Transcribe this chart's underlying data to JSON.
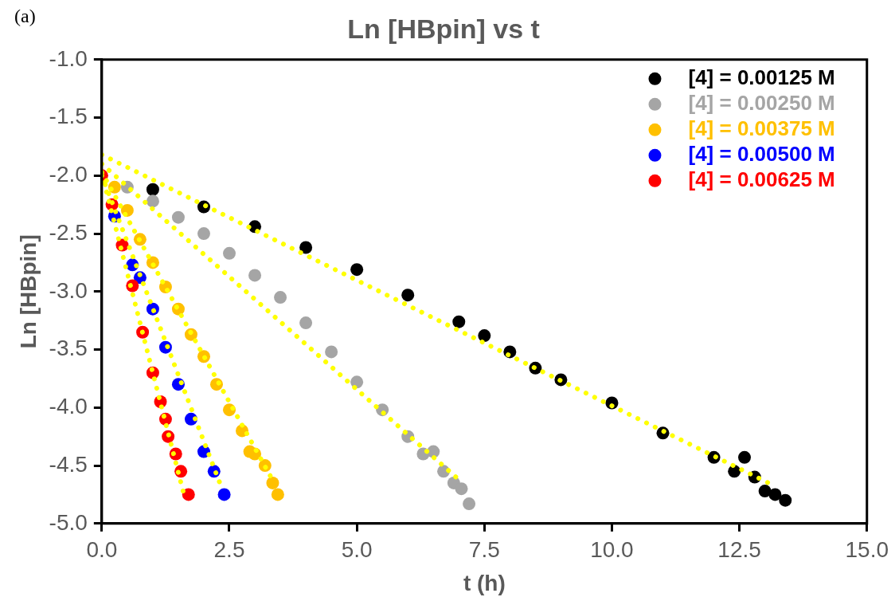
{
  "chart_data": {
    "type": "scatter",
    "title": "Ln [HBpin] vs t",
    "xlabel": "t (h)",
    "ylabel": "Ln [HBpin]",
    "annotations": [
      "(a)"
    ],
    "xlim": [
      0,
      15
    ],
    "xticks": [
      {
        "value": 0,
        "label": "0.0"
      },
      {
        "value": 2.5,
        "label": "2.5"
      },
      {
        "value": 5,
        "label": "5.0"
      },
      {
        "value": 7.5,
        "label": "7.5"
      },
      {
        "value": 10,
        "label": "10.0"
      },
      {
        "value": 12.5,
        "label": "12.5"
      },
      {
        "value": 15,
        "label": "15.0"
      }
    ],
    "ylim": [
      -5,
      -1
    ],
    "yticks": [
      {
        "value": -5,
        "label": "-5.0"
      },
      {
        "value": -4.5,
        "label": "-4.5"
      },
      {
        "value": -4,
        "label": "-4.0"
      },
      {
        "value": -3.5,
        "label": "-3.5"
      },
      {
        "value": -3,
        "label": "-3.0"
      },
      {
        "value": -2.5,
        "label": "-2.5"
      },
      {
        "value": -2,
        "label": "-2.0"
      },
      {
        "value": -1.5,
        "label": "-1.5"
      },
      {
        "value": -1,
        "label": "-1.0"
      }
    ],
    "grid": false,
    "legend": "top right",
    "marker": "circle",
    "series": [
      {
        "name": "[4] = 0.00125 M",
        "color": "#000000",
        "x": [
          1,
          2,
          3,
          4,
          5,
          6,
          7,
          7.5,
          8,
          8.5,
          9,
          10,
          11,
          12,
          12.4,
          12.6,
          12.8,
          13,
          13.2,
          13.4
        ],
        "values": [
          -2.12,
          -2.27,
          -2.44,
          -2.62,
          -2.81,
          -3.03,
          -3.26,
          -3.38,
          -3.52,
          -3.66,
          -3.76,
          -3.96,
          -4.22,
          -4.43,
          -4.55,
          -4.43,
          -4.6,
          -4.72,
          -4.75,
          -4.8
        ]
      },
      {
        "name": "[4] = 0.00250 M",
        "color": "#a5a5a5",
        "x": [
          0.5,
          1,
          1.5,
          2,
          2.5,
          3,
          3.5,
          4,
          4.5,
          5,
          5.5,
          6,
          6.3,
          6.5,
          6.7,
          6.9,
          7.05,
          7.2
        ],
        "values": [
          -2.1,
          -2.22,
          -2.36,
          -2.5,
          -2.67,
          -2.86,
          -3.05,
          -3.27,
          -3.52,
          -3.78,
          -4.02,
          -4.25,
          -4.4,
          -4.38,
          -4.55,
          -4.65,
          -4.7,
          -4.83
        ]
      },
      {
        "name": "[4] = 0.00375 M",
        "color": "#ffc000",
        "x": [
          0.25,
          0.5,
          0.75,
          1,
          1.25,
          1.5,
          1.75,
          2,
          2.25,
          2.5,
          2.75,
          2.9,
          3.0,
          3.2,
          3.35,
          3.45
        ],
        "values": [
          -2.1,
          -2.3,
          -2.55,
          -2.75,
          -2.96,
          -3.15,
          -3.37,
          -3.56,
          -3.8,
          -4.02,
          -4.2,
          -4.38,
          -4.4,
          -4.5,
          -4.65,
          -4.75
        ]
      },
      {
        "name": "[4] = 0.00500 M",
        "color": "#0000ff",
        "x": [
          0.25,
          0.6,
          0.75,
          1,
          1.25,
          1.5,
          1.75,
          2,
          2.2,
          2.4
        ],
        "values": [
          -2.35,
          -2.77,
          -2.88,
          -3.15,
          -3.48,
          -3.8,
          -4.1,
          -4.38,
          -4.55,
          -4.75
        ]
      },
      {
        "name": "[4] = 0.00625 M",
        "color": "#ff0000",
        "x": [
          0,
          0.2,
          0.4,
          0.6,
          0.8,
          1.0,
          1.15,
          1.25,
          1.3,
          1.45,
          1.55,
          1.7
        ],
        "values": [
          -2.0,
          -2.25,
          -2.6,
          -2.95,
          -3.35,
          -3.7,
          -3.95,
          -4.1,
          -4.25,
          -4.4,
          -4.55,
          -4.75
        ]
      },
      {
        "type": "line",
        "color": "#ffff00",
        "line_style": "dotted",
        "marker": "none",
        "x": [
          0,
          13.07
        ],
        "values": [
          -1.82,
          -4.65
        ]
      },
      {
        "type": "line",
        "color": "#ffff00",
        "line_style": "dotted",
        "marker": "none",
        "x": [
          0,
          6.97
        ],
        "values": [
          -1.9,
          -4.61
        ]
      },
      {
        "type": "line",
        "color": "#ffff00",
        "line_style": "dotted",
        "marker": "none",
        "x": [
          0,
          3.38
        ],
        "values": [
          -1.97,
          -4.65
        ]
      },
      {
        "type": "line",
        "color": "#ffff00",
        "line_style": "dotted",
        "marker": "none",
        "x": [
          0,
          2.34
        ],
        "values": [
          -2.0,
          -4.68
        ]
      },
      {
        "type": "line",
        "color": "#ffff00",
        "line_style": "dotted",
        "marker": "none",
        "x": [
          0,
          1.61
        ],
        "values": [
          -1.98,
          -4.75
        ]
      }
    ]
  }
}
